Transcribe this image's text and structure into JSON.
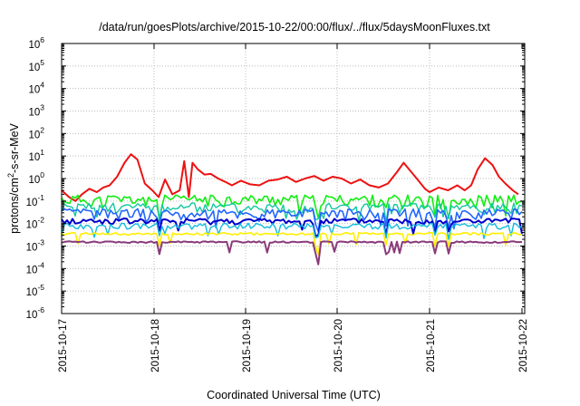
{
  "chart_data": {
    "type": "line",
    "title": "/data/run/goesPlots/archive/2015-10-22/00:00/flux/../flux/5daysMoonFluxes.txt",
    "xlabel": "Coordinated Universal Time (UTC)",
    "ylabel": {
      "base": "protons/cm",
      "sup": "2",
      "rest": "-s-sr-MeV"
    },
    "y_scale": "log",
    "ylim": [
      1e-06,
      1000000.0
    ],
    "y_ticks": [
      {
        "value": 1e-06,
        "exp": "-6"
      },
      {
        "value": 1e-05,
        "exp": "-5"
      },
      {
        "value": 0.0001,
        "exp": "-4"
      },
      {
        "value": 0.001,
        "exp": "-3"
      },
      {
        "value": 0.01,
        "exp": "-2"
      },
      {
        "value": 0.1,
        "exp": "-1"
      },
      {
        "value": 1,
        "exp": "0"
      },
      {
        "value": 10,
        "exp": "1"
      },
      {
        "value": 100,
        "exp": "2"
      },
      {
        "value": 1000,
        "exp": "3"
      },
      {
        "value": 10000,
        "exp": "4"
      },
      {
        "value": 100000,
        "exp": "5"
      },
      {
        "value": 1000000,
        "exp": "6"
      }
    ],
    "y_tick_base": "10",
    "xlim": [
      "2015-10-17",
      "2015-10-22 00:00"
    ],
    "x_ticks": [
      "2015-10-17",
      "2015-10-18",
      "2015-10-19",
      "2015-10-20",
      "2015-10-21",
      "2015-10-22"
    ],
    "grid": true,
    "legend": "none",
    "series": [
      {
        "color": "#ee1111",
        "width": 2.0,
        "x": [
          0,
          0.08,
          0.15,
          0.22,
          0.3,
          0.38,
          0.45,
          0.52,
          0.6,
          0.68,
          0.75,
          0.82,
          0.9,
          0.98,
          1.05,
          1.12,
          1.2,
          1.28,
          1.33,
          1.38,
          1.42,
          1.48,
          1.55,
          1.62,
          1.7,
          1.78,
          1.85,
          1.95,
          2.05,
          2.15,
          2.25,
          2.35,
          2.45,
          2.55,
          2.65,
          2.75,
          2.85,
          2.95,
          3.05,
          3.15,
          3.25,
          3.35,
          3.45,
          3.55,
          3.65,
          3.72,
          3.8,
          3.88,
          3.95,
          4.0,
          4.1,
          4.2,
          4.3,
          4.38,
          4.45,
          4.52,
          4.6,
          4.68,
          4.75,
          4.82,
          4.9,
          4.96
        ],
        "y": [
          0.3,
          0.15,
          0.1,
          0.2,
          0.35,
          0.25,
          0.4,
          0.5,
          1.2,
          5.0,
          12.0,
          7.0,
          0.6,
          0.3,
          0.15,
          0.9,
          0.2,
          0.3,
          6.0,
          0.15,
          5.0,
          2.5,
          1.5,
          1.6,
          1.0,
          0.7,
          0.5,
          0.8,
          0.55,
          0.5,
          0.8,
          0.9,
          1.2,
          0.7,
          1.0,
          1.3,
          0.8,
          1.2,
          1.0,
          0.6,
          0.9,
          0.5,
          0.4,
          0.6,
          2.0,
          5.0,
          2.0,
          0.8,
          0.35,
          0.25,
          0.4,
          0.3,
          0.5,
          0.3,
          0.5,
          2.5,
          8.0,
          4.0,
          1.2,
          0.6,
          0.3,
          0.2
        ]
      },
      {
        "color": "#11ee11",
        "width": 1.6,
        "mean": 0.12,
        "spread": 0.55,
        "seed": 11
      },
      {
        "color": "#11c8a0",
        "width": 1.4,
        "mean": 0.055,
        "spread": 0.5,
        "seed": 23
      },
      {
        "color": "#2266ff",
        "width": 1.6,
        "mean": 0.03,
        "spread": 0.5,
        "seed": 37
      },
      {
        "color": "#0000cc",
        "width": 2.0,
        "mean": 0.013,
        "spread": 0.3,
        "seed": 41
      },
      {
        "color": "#11bbdd",
        "width": 1.4,
        "mean": 0.008,
        "spread": 0.3,
        "seed": 53
      },
      {
        "color": "#ffee00",
        "width": 1.6,
        "mean": 0.0035,
        "spread": 0.12,
        "seed": 61
      },
      {
        "color": "#8a3a7a",
        "width": 2.0,
        "mean": 0.0015,
        "spread": 0.08,
        "seed": 73
      }
    ]
  }
}
